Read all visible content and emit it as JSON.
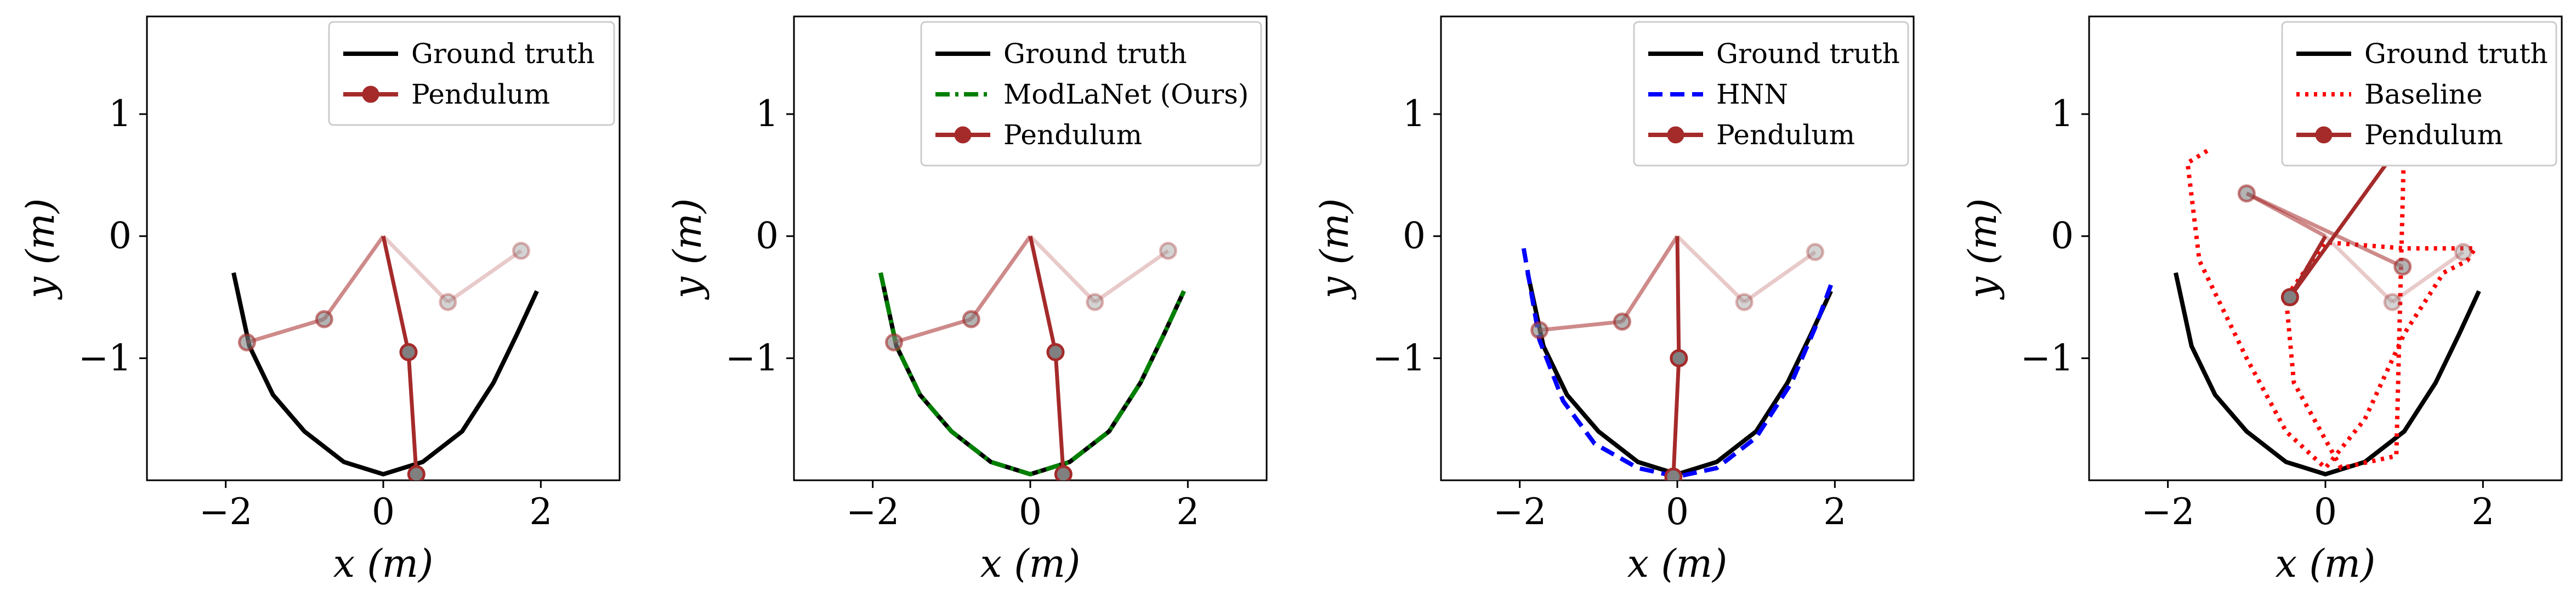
{
  "chart_data": [
    {
      "type": "line",
      "xlabel": "x (m)",
      "ylabel": "y (m)",
      "xlim": [
        -3,
        3
      ],
      "ylim": [
        -2,
        1.8
      ],
      "xticks": [
        "−2",
        "0",
        "2"
      ],
      "yticks": [
        "1",
        "0",
        "−1"
      ],
      "legend_position": "top-right",
      "legend": [
        "Ground truth",
        "Pendulum"
      ],
      "series": [
        {
          "name": "Ground truth",
          "color": "#000000",
          "style": "solid",
          "x": [
            -1.9,
            -1.7,
            -1.4,
            -1.0,
            -0.5,
            0.0,
            0.5,
            1.0,
            1.4,
            1.7,
            1.95
          ],
          "y": [
            -0.3,
            -0.9,
            -1.3,
            -1.6,
            -1.85,
            -1.95,
            -1.85,
            -1.6,
            -1.2,
            -0.8,
            -0.45
          ]
        },
        {
          "name": "Pendulum",
          "color": "#a52a2a",
          "points": [
            [
              0,
              0
            ],
            [
              -0.75,
              -0.68
            ],
            [
              -1.73,
              -0.87
            ],
            [
              0.32,
              -0.95
            ],
            [
              0.42,
              -1.95
            ],
            [
              0.82,
              -0.54
            ],
            [
              1.75,
              -0.12
            ]
          ]
        }
      ]
    },
    {
      "type": "line",
      "xlabel": "x (m)",
      "ylabel": "y (m)",
      "xlim": [
        -3,
        3
      ],
      "ylim": [
        -2,
        1.8
      ],
      "xticks": [
        "−2",
        "0",
        "2"
      ],
      "yticks": [
        "1",
        "0",
        "−1"
      ],
      "legend_position": "top-right",
      "legend": [
        "Ground truth",
        "ModLaNet (Ours)",
        "Pendulum"
      ],
      "series": [
        {
          "name": "Ground truth",
          "color": "#000000",
          "style": "solid",
          "x": [
            -1.9,
            -1.7,
            -1.4,
            -1.0,
            -0.5,
            0.0,
            0.5,
            1.0,
            1.4,
            1.7,
            1.95
          ],
          "y": [
            -0.3,
            -0.9,
            -1.3,
            -1.6,
            -1.85,
            -1.95,
            -1.85,
            -1.6,
            -1.2,
            -0.8,
            -0.45
          ]
        },
        {
          "name": "ModLaNet (Ours)",
          "color": "#008000",
          "style": "dashdot",
          "x": [
            -1.9,
            -1.7,
            -1.4,
            -1.0,
            -0.5,
            0.0,
            0.5,
            1.0,
            1.4,
            1.7,
            1.95
          ],
          "y": [
            -0.3,
            -0.9,
            -1.3,
            -1.6,
            -1.85,
            -1.95,
            -1.85,
            -1.6,
            -1.2,
            -0.8,
            -0.45
          ]
        },
        {
          "name": "Pendulum",
          "color": "#a52a2a",
          "points": [
            [
              0,
              0
            ],
            [
              -0.75,
              -0.68
            ],
            [
              -1.73,
              -0.87
            ],
            [
              0.32,
              -0.95
            ],
            [
              0.42,
              -1.95
            ],
            [
              0.82,
              -0.54
            ],
            [
              1.75,
              -0.12
            ]
          ]
        }
      ]
    },
    {
      "type": "line",
      "xlabel": "x (m)",
      "ylabel": "y (m)",
      "xlim": [
        -3,
        3
      ],
      "ylim": [
        -2,
        1.8
      ],
      "xticks": [
        "−2",
        "0",
        "2"
      ],
      "yticks": [
        "1",
        "0",
        "−1"
      ],
      "legend_position": "top-right",
      "legend": [
        "Ground truth",
        "HNN",
        "Pendulum"
      ],
      "series": [
        {
          "name": "Ground truth",
          "color": "#000000",
          "style": "solid",
          "x": [
            -1.9,
            -1.7,
            -1.4,
            -1.0,
            -0.5,
            0.0,
            0.5,
            1.0,
            1.4,
            1.7,
            1.95
          ],
          "y": [
            -0.3,
            -0.9,
            -1.3,
            -1.6,
            -1.85,
            -1.95,
            -1.85,
            -1.6,
            -1.2,
            -0.8,
            -0.45
          ]
        },
        {
          "name": "HNN",
          "color": "#0000ff",
          "style": "dashed",
          "x": [
            -1.95,
            -1.75,
            -1.45,
            -1.05,
            -0.5,
            0.0,
            0.5,
            1.0,
            1.45,
            1.75,
            1.95
          ],
          "y": [
            -0.1,
            -0.85,
            -1.35,
            -1.7,
            -1.9,
            -1.97,
            -1.9,
            -1.65,
            -1.2,
            -0.75,
            -0.4
          ]
        },
        {
          "name": "Pendulum",
          "color": "#a52a2a",
          "points": [
            [
              0,
              0
            ],
            [
              -0.7,
              -0.7
            ],
            [
              -1.75,
              -0.77
            ],
            [
              0.02,
              -1.0
            ],
            [
              -0.05,
              -1.97
            ],
            [
              0.85,
              -0.54
            ],
            [
              1.75,
              -0.13
            ]
          ]
        }
      ]
    },
    {
      "type": "line",
      "xlabel": "x (m)",
      "ylabel": "y (m)",
      "xlim": [
        -3,
        3
      ],
      "ylim": [
        -2,
        1.8
      ],
      "xticks": [
        "−2",
        "0",
        "2"
      ],
      "yticks": [
        "1",
        "0",
        "−1"
      ],
      "legend_position": "top-right",
      "legend": [
        "Ground truth",
        "Baseline",
        "Pendulum"
      ],
      "series": [
        {
          "name": "Ground truth",
          "color": "#000000",
          "style": "solid",
          "x": [
            -1.9,
            -1.7,
            -1.4,
            -1.0,
            -0.5,
            0.0,
            0.5,
            1.0,
            1.4,
            1.7,
            1.95
          ],
          "y": [
            -0.3,
            -0.9,
            -1.3,
            -1.6,
            -1.85,
            -1.95,
            -1.85,
            -1.6,
            -1.2,
            -0.8,
            -0.45
          ]
        },
        {
          "name": "Baseline",
          "color": "#ff0000",
          "style": "dotted",
          "x": [
            -1.5,
            -1.75,
            -1.6,
            -1.0,
            -0.5,
            0.0,
            0.5,
            1.0,
            1.5,
            1.8,
            1.9,
            1.0,
            0.0,
            -0.5,
            -0.4,
            0.2,
            0.9,
            1.0
          ],
          "y": [
            0.7,
            0.6,
            -0.2,
            -1.0,
            -1.6,
            -1.9,
            -1.5,
            -0.8,
            -0.3,
            -0.2,
            -0.1,
            -0.1,
            -0.05,
            -0.5,
            -1.2,
            -1.9,
            -1.8,
            0.8
          ]
        },
        {
          "name": "Pendulum",
          "color": "#a52a2a",
          "points": [
            [
              0,
              0
            ],
            [
              -1.0,
              0.35
            ],
            [
              0.98,
              -0.25
            ],
            [
              -0.45,
              -0.5
            ],
            [
              0.95,
              0.75
            ],
            [
              0.85,
              -0.54
            ],
            [
              1.75,
              -0.13
            ]
          ]
        }
      ]
    }
  ]
}
